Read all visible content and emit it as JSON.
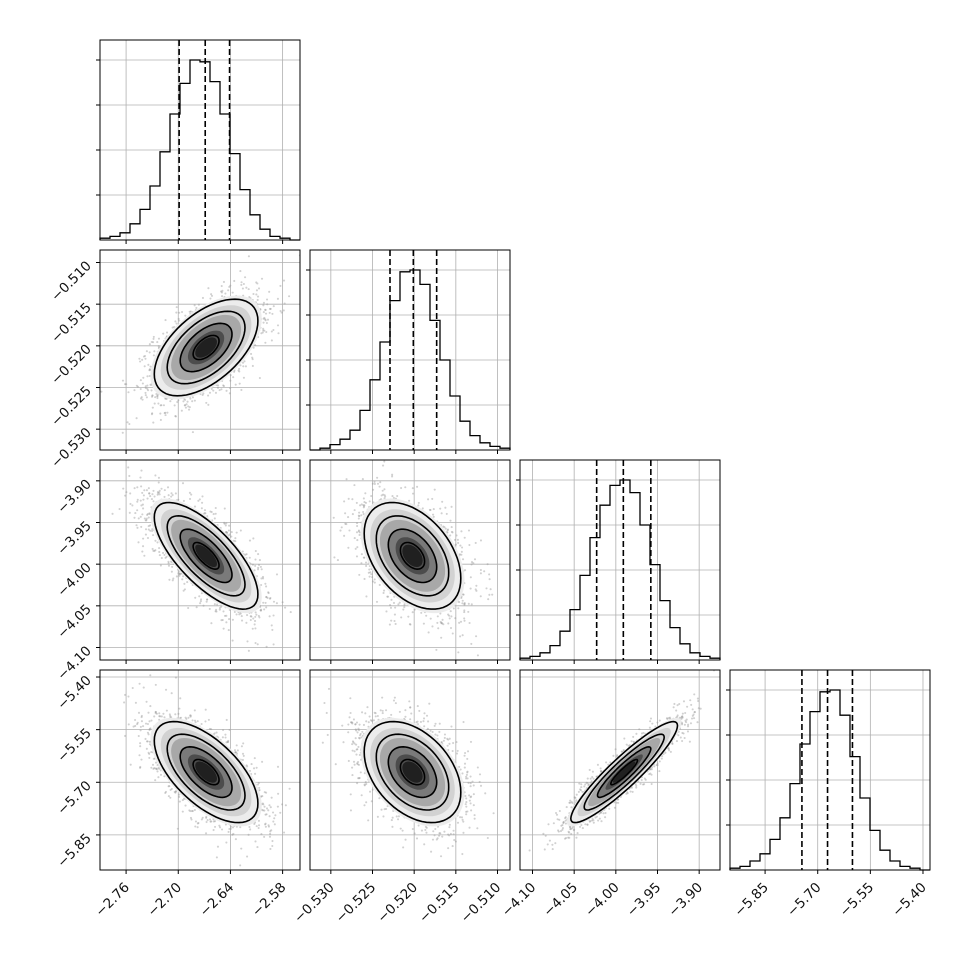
{
  "chart_data": {
    "type": "corner",
    "parameters": [
      {
        "ticks": [
          -2.76,
          -2.7,
          -2.64,
          -2.58
        ],
        "tick_labels": [
          "−2.76",
          "−2.70",
          "−2.64",
          "−2.58"
        ],
        "range": [
          -2.79,
          -2.56
        ],
        "quantiles": [
          -2.699,
          -2.669,
          -2.641
        ],
        "hist": [
          1,
          2,
          4,
          9,
          17,
          30,
          49,
          70,
          87,
          100,
          99,
          88,
          70,
          48,
          28,
          14,
          6,
          2,
          1,
          0
        ]
      },
      {
        "ticks": [
          -0.53,
          -0.525,
          -0.52,
          -0.515,
          -0.51
        ],
        "tick_labels": [
          "−0.530",
          "−0.525",
          "−0.520",
          "−0.515",
          "−0.510"
        ],
        "range": [
          -0.5325,
          -0.5085
        ],
        "quantiles": [
          -0.5229,
          -0.5201,
          -0.5173
        ],
        "hist": [
          0,
          1,
          3,
          6,
          11,
          22,
          39,
          60,
          83,
          99,
          100,
          92,
          72,
          50,
          30,
          16,
          8,
          4,
          2,
          1
        ]
      },
      {
        "ticks": [
          -4.1,
          -4.05,
          -4.0,
          -3.95,
          -3.9
        ],
        "tick_labels": [
          "−4.10",
          "−4.05",
          "−4.00",
          "−3.95",
          "−3.90"
        ],
        "range": [
          -4.115,
          -3.875
        ],
        "quantiles": [
          -4.023,
          -3.991,
          -3.958
        ],
        "hist": [
          1,
          2,
          4,
          8,
          16,
          28,
          47,
          68,
          86,
          97,
          100,
          93,
          75,
          53,
          33,
          18,
          9,
          4,
          2,
          1
        ]
      },
      {
        "ticks": [
          -5.85,
          -5.7,
          -5.55,
          -5.4
        ],
        "tick_labels": [
          "−5.85",
          "−5.70",
          "−5.55",
          "−5.40"
        ],
        "range": [
          -5.95,
          -5.38
        ],
        "quantiles": [
          -5.745,
          -5.672,
          -5.601
        ],
        "hist": [
          1,
          2,
          5,
          9,
          17,
          29,
          48,
          70,
          88,
          99,
          100,
          86,
          63,
          40,
          22,
          11,
          5,
          2,
          1,
          0
        ]
      }
    ],
    "pairs": [
      {
        "row": 1,
        "col": 0,
        "mean": [
          -2.668,
          -0.5202
        ],
        "sd": [
          0.0298,
          0.0029
        ],
        "rho": 0.55
      },
      {
        "row": 2,
        "col": 0,
        "mean": [
          -2.668,
          -3.99
        ],
        "sd": [
          0.0298,
          0.032
        ],
        "rho": -0.72
      },
      {
        "row": 2,
        "col": 1,
        "mean": [
          -0.5202,
          -3.99
        ],
        "sd": [
          0.0029,
          0.032
        ],
        "rho": -0.42
      },
      {
        "row": 3,
        "col": 0,
        "mean": [
          -2.668,
          -5.671
        ],
        "sd": [
          0.0298,
          0.072
        ],
        "rho": -0.62
      },
      {
        "row": 3,
        "col": 1,
        "mean": [
          -0.5202,
          -5.671
        ],
        "sd": [
          0.0029,
          0.072
        ],
        "rho": -0.4
      },
      {
        "row": 3,
        "col": 2,
        "mean": [
          -3.99,
          -5.671
        ],
        "sd": [
          0.032,
          0.072
        ],
        "rho": 0.92
      }
    ],
    "contour_levels_sigma": [
      0.5,
      1.0,
      1.5,
      2.0
    ],
    "grid": true,
    "colors": {
      "line": "#000000",
      "scatter": "#9a9a9a",
      "grid": "#b0b0b0"
    }
  }
}
